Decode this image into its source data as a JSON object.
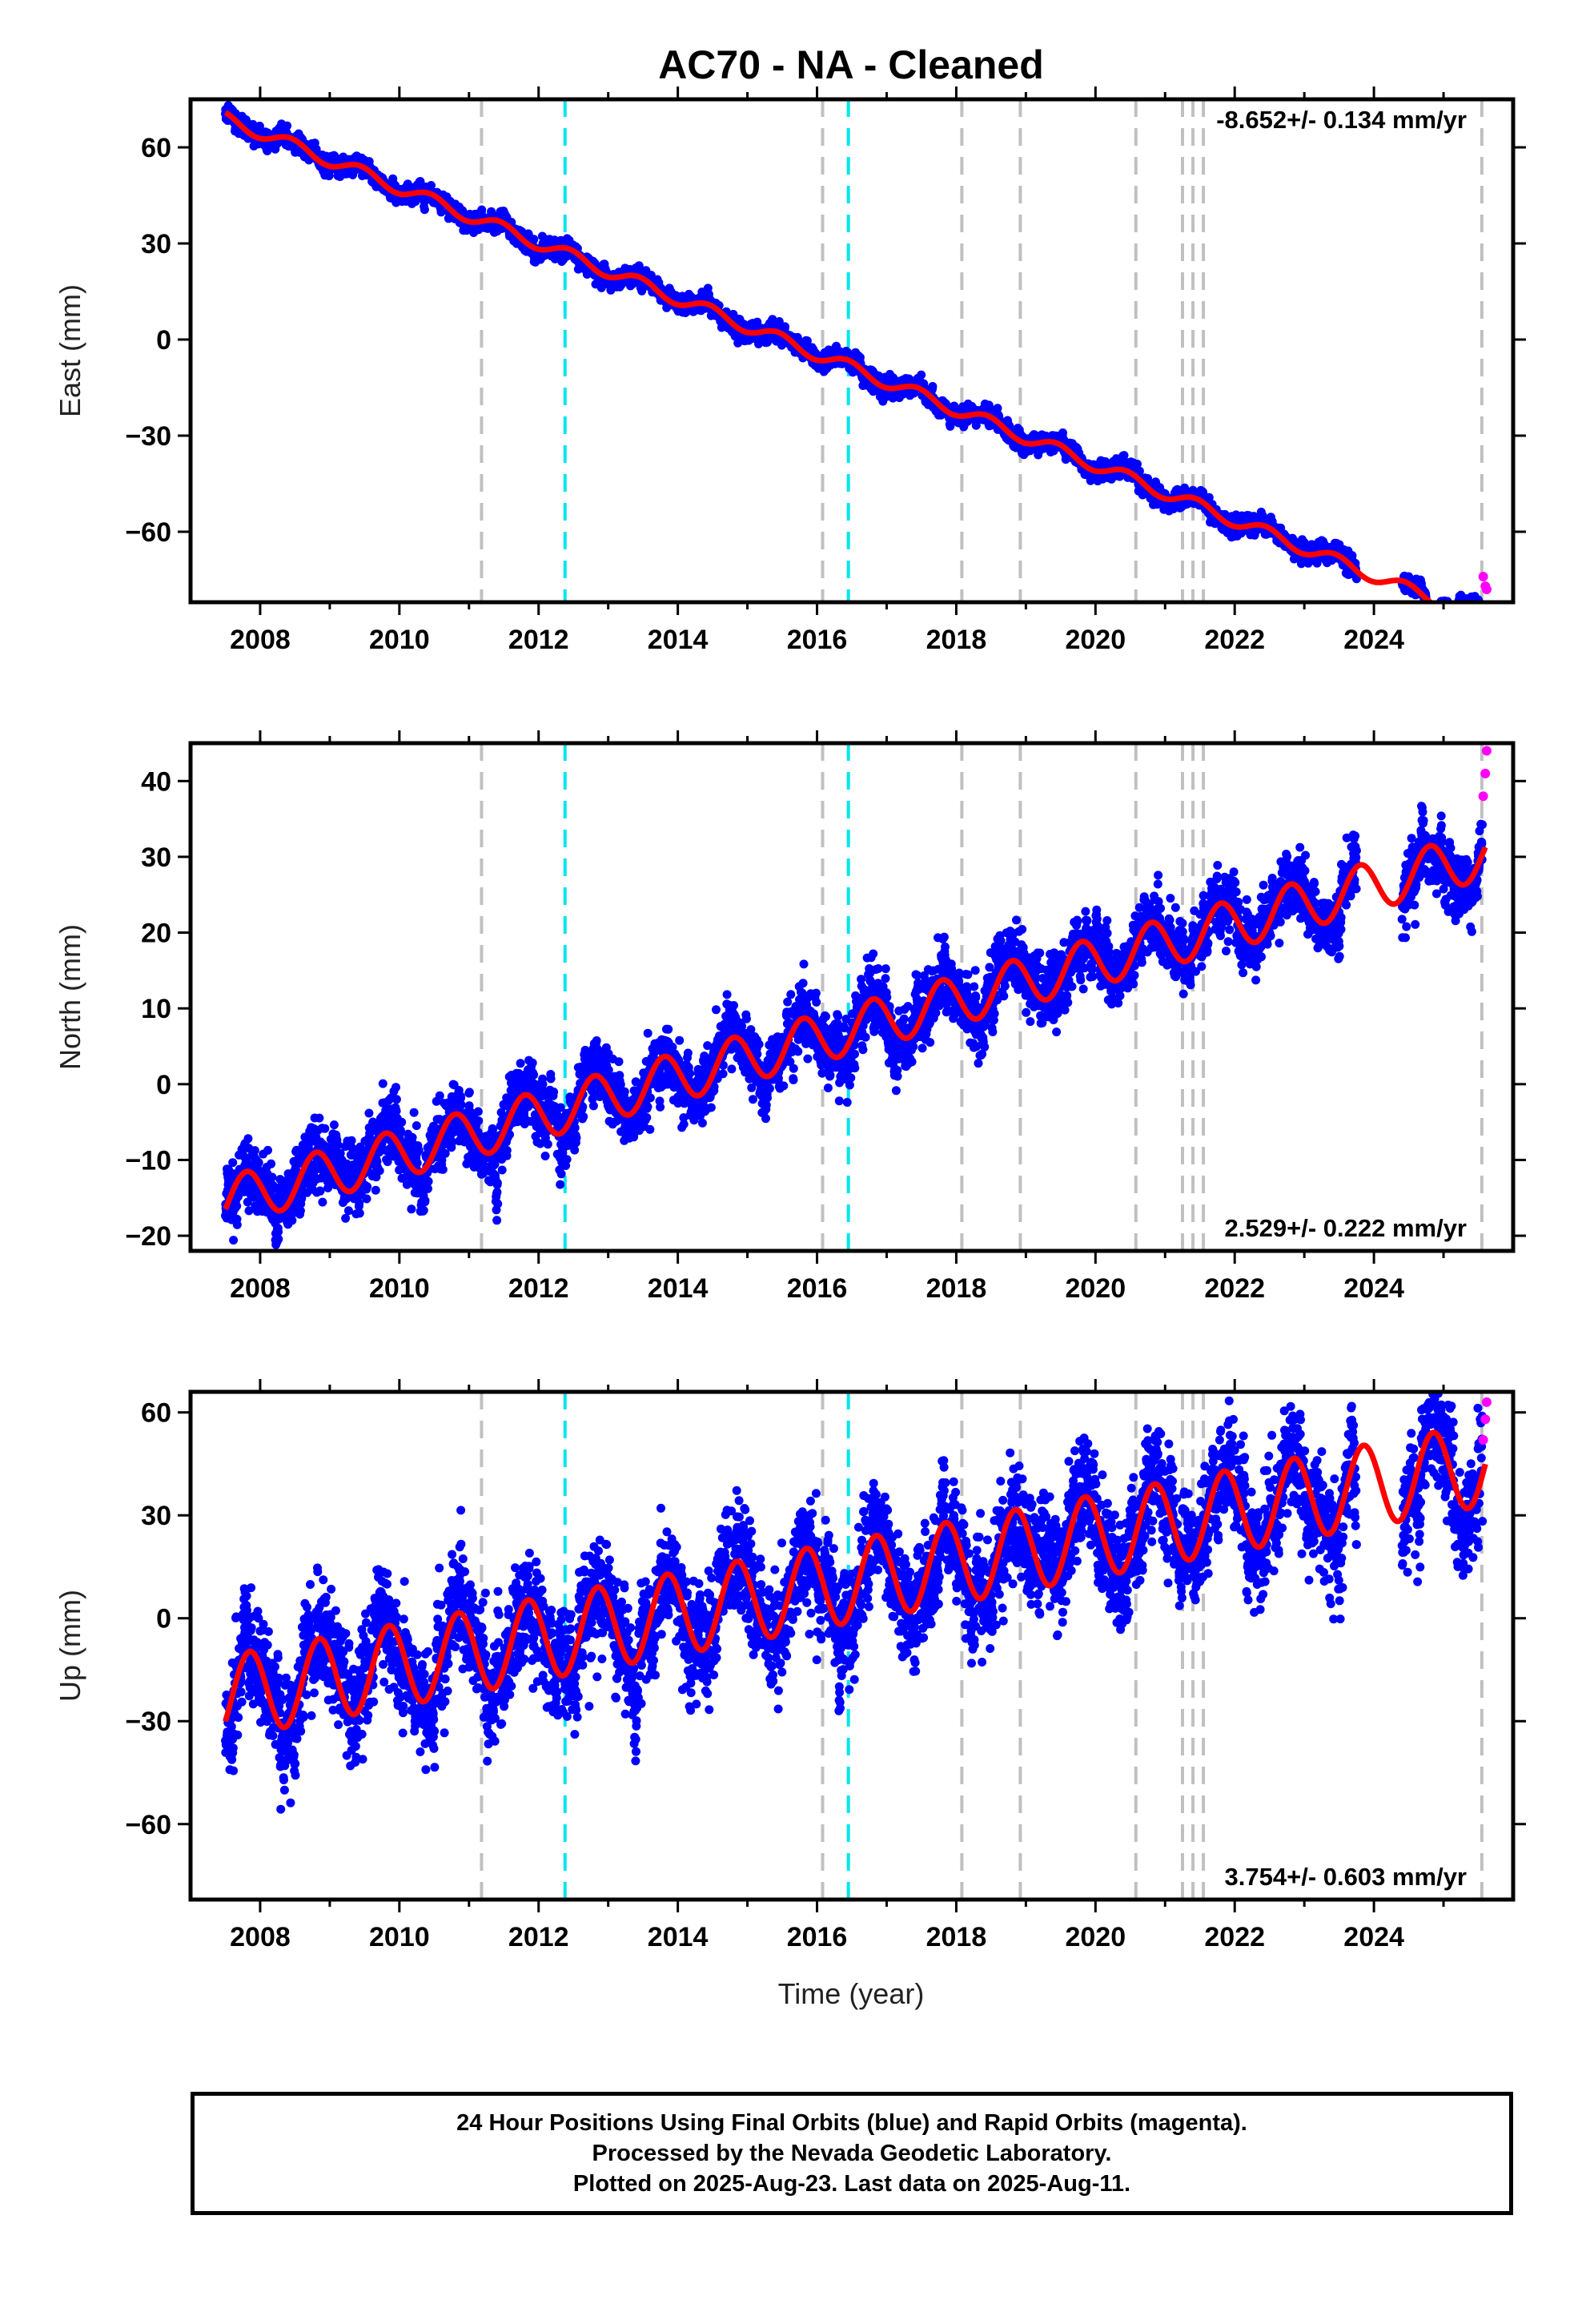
{
  "chart_data": {
    "type": "scatter",
    "title": "AC70  - NA - Cleaned",
    "xlabel": "Time (year)",
    "x_ticks": [
      2008,
      2010,
      2012,
      2014,
      2016,
      2018,
      2020,
      2022,
      2024
    ],
    "xlim": [
      2007.0,
      2026.0
    ],
    "event_lines": {
      "gray": [
        2011.18,
        2016.08,
        2018.08,
        2018.92,
        2020.58,
        2021.25,
        2021.4,
        2021.55,
        2025.55
      ],
      "cyan": [
        2012.38,
        2016.45
      ]
    },
    "colors": {
      "final_orbits": "#0000ff",
      "rapid_orbits": "#ff00ff",
      "model": "#ff0000",
      "gray_lines": "#c0c0c0",
      "cyan_lines": "#00e5ee"
    },
    "panels": [
      {
        "name": "east",
        "ylabel": "East (mm)",
        "rate_label": "-8.652+/- 0.134 mm/yr",
        "rate_position": "top-right",
        "ylim": [
          -82,
          75
        ],
        "y_ticks": [
          60,
          30,
          0,
          -30,
          -60
        ],
        "trend": {
          "t0": 2007.5,
          "y0": 69,
          "rate": -8.652
        },
        "seasonal": {
          "amplitude": 2.0,
          "phase": 0.2
        },
        "noise": 1.2,
        "gaps": [
          [
            2023.75,
            2024.4
          ],
          [
            2024.75,
            2024.95
          ]
        ],
        "model_end": 2025.6,
        "rapid_points": [
          [
            2025.57,
            -74
          ],
          [
            2025.6,
            -77
          ],
          [
            2025.62,
            -78
          ]
        ]
      },
      {
        "name": "north",
        "ylabel": "North (mm)",
        "rate_label": "2.529+/- 0.222 mm/yr",
        "rate_position": "bottom-right",
        "ylim": [
          -22,
          45
        ],
        "y_ticks": [
          40,
          30,
          20,
          10,
          0,
          -10,
          -20
        ],
        "trend": {
          "t0": 2007.5,
          "y0": -15.5,
          "rate": 2.529
        },
        "seasonal": {
          "amplitude": 3.2,
          "phase": 0.55
        },
        "noise": 1.8,
        "gaps": [
          [
            2023.75,
            2024.4
          ]
        ],
        "model_end": 2025.6,
        "rapid_points": [
          [
            2025.57,
            38
          ],
          [
            2025.6,
            41
          ],
          [
            2025.62,
            44
          ]
        ]
      },
      {
        "name": "up",
        "ylabel": "Up (mm)",
        "rate_label": "3.754+/- 0.603 mm/yr",
        "rate_position": "bottom-right",
        "ylim": [
          -82,
          66
        ],
        "y_ticks": [
          60,
          30,
          0,
          -30,
          -60
        ],
        "trend": {
          "t0": 2007.5,
          "y0": -23,
          "rate": 3.754
        },
        "seasonal": {
          "amplitude": 12,
          "phase": 0.6
        },
        "noise": 7,
        "gaps": [
          [
            2023.75,
            2024.4
          ]
        ],
        "model_end": 2025.6,
        "rapid_points": [
          [
            2025.57,
            52
          ],
          [
            2025.6,
            58
          ],
          [
            2025.62,
            63
          ]
        ]
      }
    ]
  },
  "footer": {
    "line1": "24 Hour Positions Using Final Orbits (blue) and Rapid Orbits (magenta).",
    "line2": "Processed by the Nevada Geodetic Laboratory.",
    "line3": "Plotted on 2025-Aug-23. Last data on 2025-Aug-11."
  }
}
